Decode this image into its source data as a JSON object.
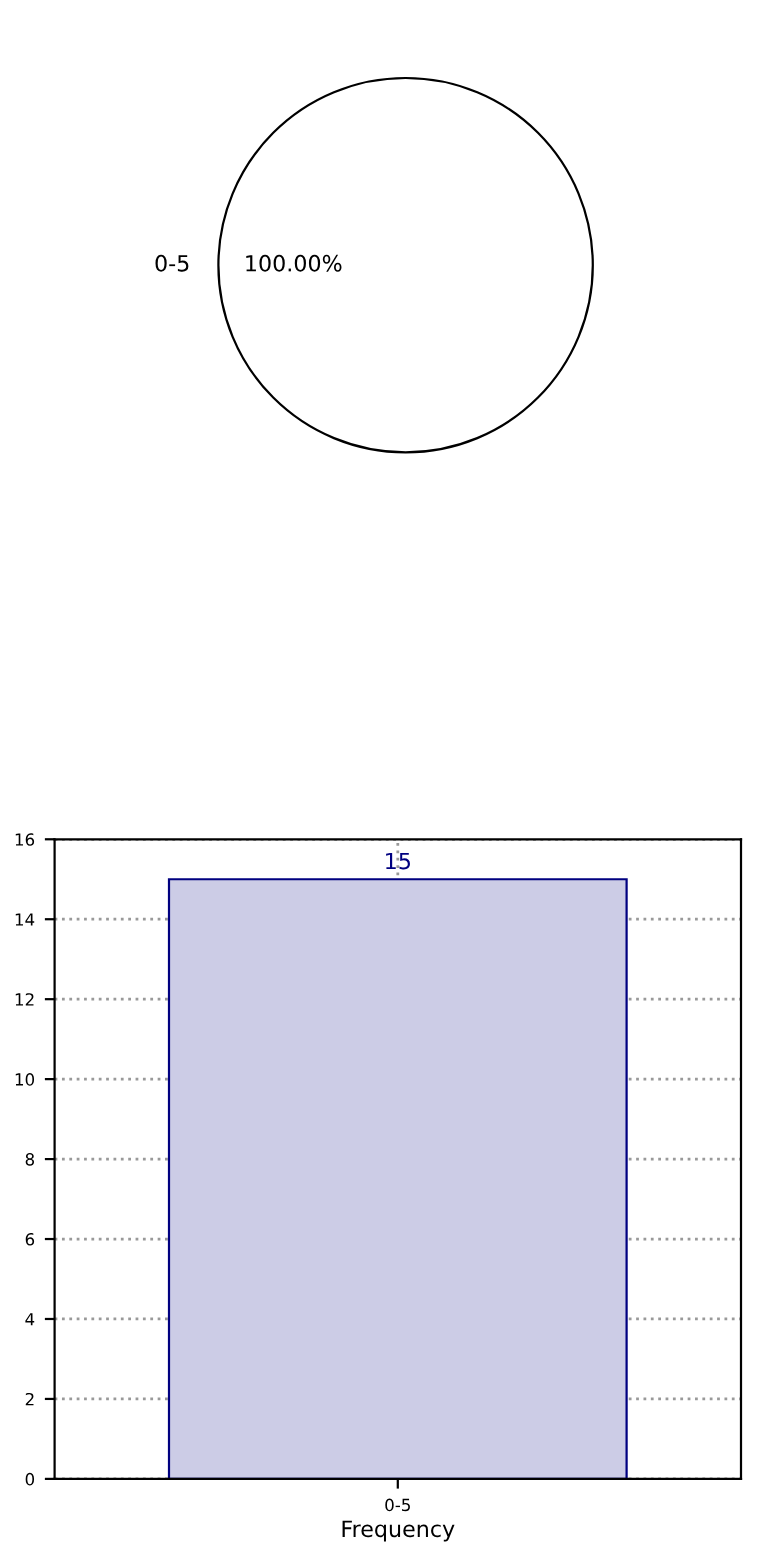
{
  "chart_data": [
    {
      "type": "pie",
      "categories": [
        "0-5"
      ],
      "values": [
        100
      ],
      "colors": [
        "#ffffff"
      ],
      "value_labels": [
        "100.00%"
      ]
    },
    {
      "type": "bar",
      "categories": [
        "0-5"
      ],
      "values": [
        15
      ],
      "color": "#ccccE6",
      "xlabel": "Frequency",
      "ylim": [
        0,
        16
      ],
      "yticks": [
        0,
        2,
        4,
        6,
        8,
        10,
        12,
        14,
        16
      ],
      "grid": true,
      "data_labels": true
    }
  ]
}
